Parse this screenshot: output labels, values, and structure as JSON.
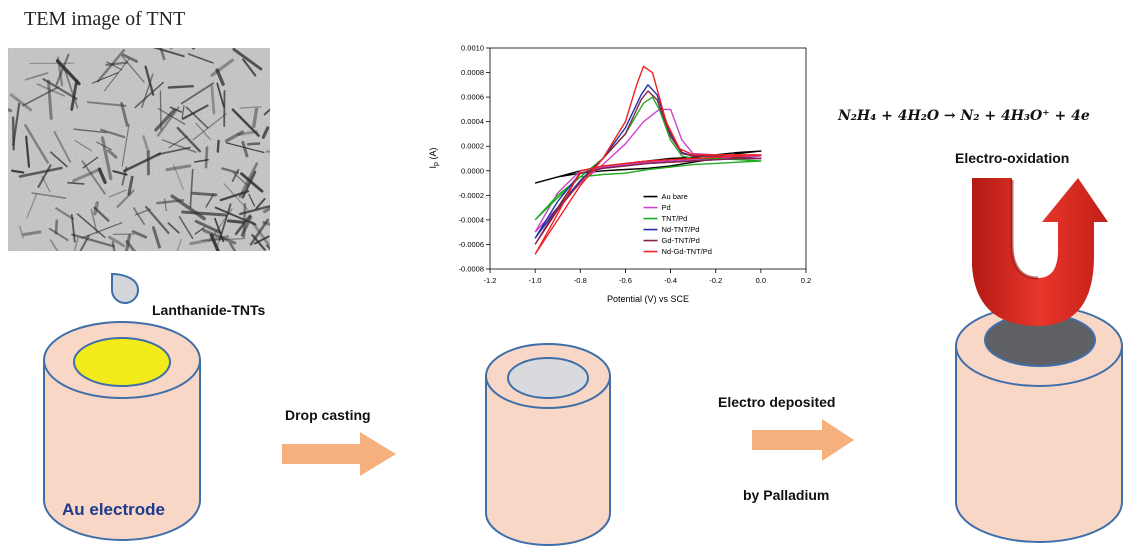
{
  "tem": {
    "title": "TEM image of TNT"
  },
  "steps": {
    "droplet_label": "Lanthanide-TNTs",
    "electrode_label": "Au electrode",
    "arrow1_label": "Drop casting",
    "arrow2_label_line1": "Electro deposited",
    "arrow2_label_line2": "by Palladium",
    "oxidation_label": "Electro-oxidation"
  },
  "equation": {
    "text": "N₂H₄ + 4H₂O → N₂ + 4H₃O⁺ + 4e"
  },
  "colors": {
    "cylinder_fill": "#f9d7c7",
    "cylinder_stroke": "#3f6fa8",
    "au_top": "#f4ec1a",
    "tnt_top": "#d9dadd",
    "pd_top": "#5f6066",
    "process_arrow": "#f6b07d",
    "oxidation_arrow": "#e0281e"
  },
  "chart_data": {
    "type": "line",
    "xlabel": "Potential (V) vs SCE",
    "ylabel": "I_p (A)",
    "xlim": [
      -1.2,
      0.2
    ],
    "ylim": [
      -0.0008,
      0.001
    ],
    "xticks": [
      "-1.2",
      "-1.0",
      "-0.8",
      "-0.6",
      "-0.4",
      "-0.2",
      "0.0",
      "0.2"
    ],
    "yticks": [
      "-0.0008",
      "-0.0006",
      "-0.0004",
      "-0.0002",
      "0.0000",
      "0.0002",
      "0.0004",
      "0.0006",
      "0.0008",
      "0.0010"
    ],
    "legend_position": "bottom-right",
    "series": [
      {
        "name": "Au bare",
        "color": "#000000",
        "x": [
          -1.0,
          -0.9,
          -0.8,
          -0.7,
          -0.6,
          -0.5,
          -0.4,
          -0.3,
          -0.2,
          -0.1,
          0.0,
          -0.1,
          -0.2,
          -0.3,
          -0.4,
          -0.5,
          -0.6,
          -0.7,
          -0.8,
          -0.9,
          -1.0
        ],
        "y": [
          -0.0001,
          -5e-05,
          -2e-05,
          0.0,
          1e-05,
          2e-05,
          4e-05,
          7e-05,
          0.0001,
          0.00014,
          0.00016,
          0.00015,
          0.00013,
          0.00011,
          0.0001,
          8e-05,
          6e-05,
          3e-05,
          0.0,
          -5e-05,
          -0.0001
        ]
      },
      {
        "name": "Pd",
        "color": "#cc44cc",
        "x": [
          -1.0,
          -0.9,
          -0.8,
          -0.7,
          -0.6,
          -0.52,
          -0.45,
          -0.4,
          -0.35,
          -0.3,
          -0.2,
          -0.1,
          0.0,
          -0.1,
          -0.2,
          -0.3,
          -0.4,
          -0.5,
          -0.6,
          -0.7,
          -0.8,
          -0.9,
          -1.0
        ],
        "y": [
          -0.0005,
          -0.0003,
          -0.0001,
          5e-05,
          0.00022,
          0.0004,
          0.0005,
          0.0005,
          0.00025,
          0.00014,
          0.00013,
          0.00012,
          0.00012,
          0.00011,
          0.0001,
          9e-05,
          8e-05,
          7e-05,
          5e-05,
          3e-05,
          0.0,
          -0.00018,
          -0.0005
        ]
      },
      {
        "name": "TNT/Pd",
        "color": "#22aa22",
        "x": [
          -1.0,
          -0.9,
          -0.8,
          -0.7,
          -0.6,
          -0.52,
          -0.48,
          -0.45,
          -0.4,
          -0.35,
          -0.3,
          -0.2,
          -0.1,
          0.0,
          -0.1,
          -0.2,
          -0.3,
          -0.4,
          -0.5,
          -0.6,
          -0.7,
          -0.8,
          -0.9,
          -1.0
        ],
        "y": [
          -0.0004,
          -0.00022,
          -5e-05,
          0.0001,
          0.0003,
          0.00055,
          0.0006,
          0.0005,
          0.00025,
          0.00012,
          0.0001,
          0.0001,
          9e-05,
          8e-05,
          7e-05,
          6e-05,
          5e-05,
          3e-05,
          1e-05,
          -2e-05,
          -3e-05,
          -5e-05,
          -0.0002,
          -0.0004
        ]
      },
      {
        "name": "Nd-TNT/Pd",
        "color": "#2233aa",
        "x": [
          -1.0,
          -0.9,
          -0.8,
          -0.7,
          -0.6,
          -0.53,
          -0.5,
          -0.46,
          -0.4,
          -0.35,
          -0.3,
          -0.2,
          -0.1,
          0.0,
          -0.1,
          -0.2,
          -0.3,
          -0.4,
          -0.5,
          -0.6,
          -0.7,
          -0.8,
          -0.9,
          -1.0
        ],
        "y": [
          -0.00055,
          -0.0003,
          -8e-05,
          0.0001,
          0.00035,
          0.00062,
          0.0007,
          0.00062,
          0.0003,
          0.00015,
          0.00012,
          0.00012,
          0.00011,
          0.0001,
          0.0001,
          9e-05,
          8e-05,
          7e-05,
          6e-05,
          4e-05,
          2e-05,
          -2e-05,
          -0.00025,
          -0.00055
        ]
      },
      {
        "name": "Gd-TNT/Pd",
        "color": "#882244",
        "x": [
          -1.0,
          -0.9,
          -0.8,
          -0.7,
          -0.6,
          -0.53,
          -0.5,
          -0.46,
          -0.4,
          -0.35,
          -0.3,
          -0.2,
          -0.1,
          0.0,
          -0.1,
          -0.2,
          -0.3,
          -0.4,
          -0.5,
          -0.6,
          -0.7,
          -0.8,
          -0.9,
          -1.0
        ],
        "y": [
          -0.0006,
          -0.00032,
          -9e-05,
          0.0001,
          0.0003,
          0.00058,
          0.00065,
          0.00058,
          0.00028,
          0.00014,
          0.00012,
          0.00012,
          0.00011,
          0.0001,
          0.0001,
          9e-05,
          8e-05,
          7e-05,
          6e-05,
          4e-05,
          2e-05,
          -2e-05,
          -0.0003,
          -0.0006
        ]
      },
      {
        "name": "Nd-Gd-TNT/Pd",
        "color": "#ee2222",
        "x": [
          -1.0,
          -0.9,
          -0.8,
          -0.7,
          -0.6,
          -0.55,
          -0.52,
          -0.48,
          -0.42,
          -0.36,
          -0.3,
          -0.2,
          -0.1,
          0.0,
          -0.1,
          -0.2,
          -0.3,
          -0.4,
          -0.5,
          -0.6,
          -0.7,
          -0.8,
          -0.9,
          -1.0
        ],
        "y": [
          -0.00068,
          -0.0004,
          -0.00012,
          0.0001,
          0.0004,
          0.0007,
          0.00085,
          0.0008,
          0.0004,
          0.00018,
          0.00013,
          0.00013,
          0.00013,
          0.00013,
          0.00012,
          0.00011,
          0.0001,
          9e-05,
          8e-05,
          6e-05,
          4e-05,
          0.0,
          -0.00035,
          -0.00068
        ]
      }
    ]
  }
}
